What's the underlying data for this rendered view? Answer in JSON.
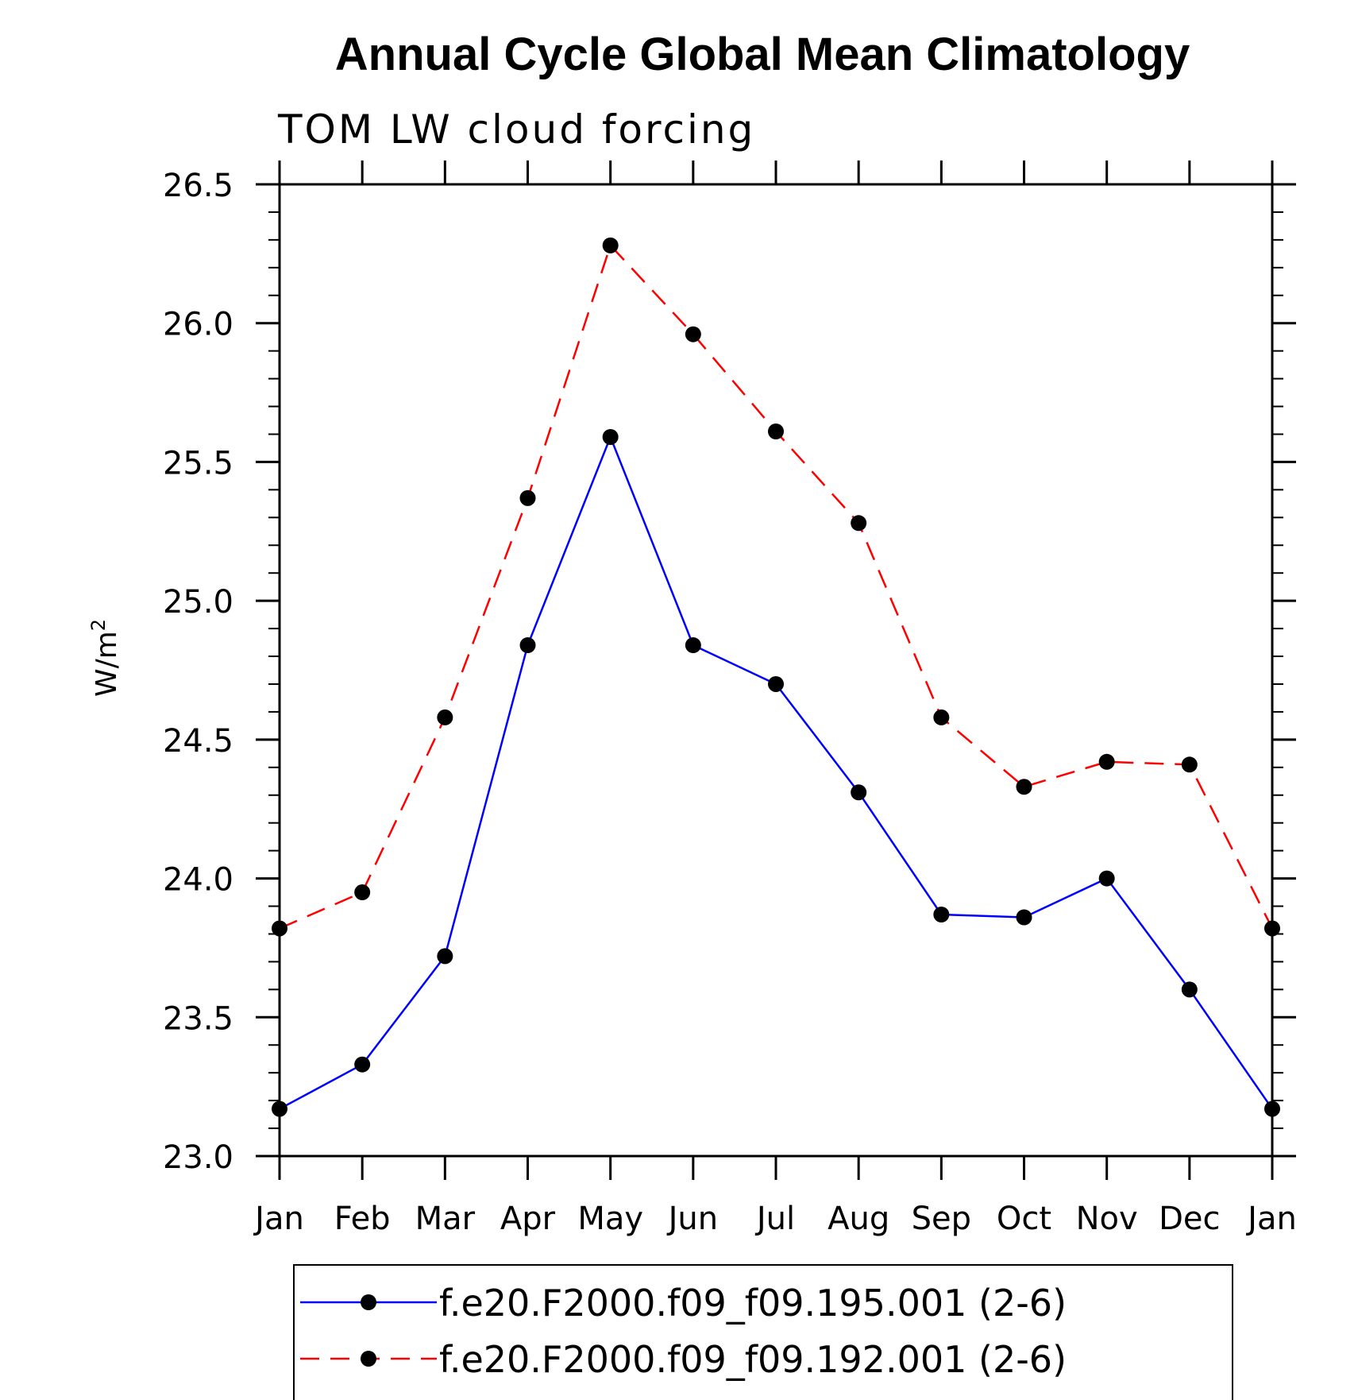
{
  "chart_data": {
    "type": "line",
    "title": "Annual Cycle Global Mean Climatology",
    "subtitle": "TOM LW cloud forcing",
    "ylabel": "W/m",
    "ylabel_sup": "2",
    "xlabel": "",
    "categories": [
      "Jan",
      "Feb",
      "Mar",
      "Apr",
      "May",
      "Jun",
      "Jul",
      "Aug",
      "Sep",
      "Oct",
      "Nov",
      "Dec",
      "Jan"
    ],
    "ylim": [
      23.0,
      26.5
    ],
    "yticks": [
      "23.0",
      "23.5",
      "24.0",
      "24.5",
      "25.0",
      "25.5",
      "26.0",
      "26.5"
    ],
    "grid": false,
    "legend_position": "bottom",
    "series": [
      {
        "name": "f.e20.F2000.f09_f09.195.001 (2-6)",
        "color": "#0000ff",
        "line_style": "solid",
        "marker": "filled-circle",
        "values": [
          23.17,
          23.33,
          23.72,
          24.84,
          25.59,
          24.84,
          24.7,
          24.31,
          23.87,
          23.86,
          24.0,
          23.6,
          23.17
        ]
      },
      {
        "name": "f.e20.F2000.f09_f09.192.001 (2-6)",
        "color": "#ff0000",
        "line_style": "dashed",
        "marker": "filled-circle",
        "values": [
          23.82,
          23.95,
          24.58,
          25.37,
          26.28,
          25.96,
          25.61,
          25.28,
          24.58,
          24.33,
          24.42,
          24.41,
          23.82
        ]
      }
    ]
  }
}
